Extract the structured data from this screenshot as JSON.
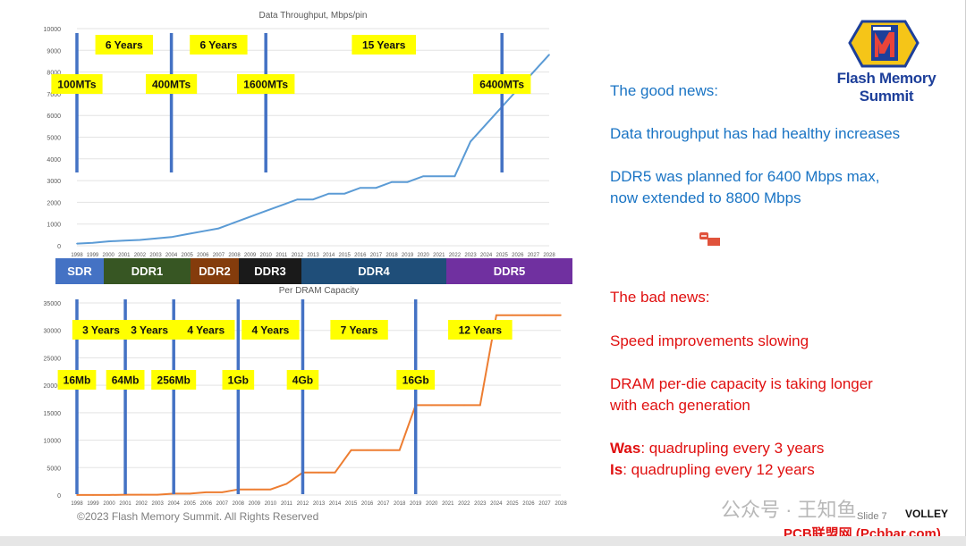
{
  "chart_data": [
    {
      "type": "line",
      "title": "Data Throughput, Mbps/pin",
      "x": [
        1998,
        1999,
        2000,
        2001,
        2002,
        2003,
        2004,
        2005,
        2006,
        2007,
        2008,
        2009,
        2010,
        2011,
        2012,
        2013,
        2014,
        2015,
        2016,
        2017,
        2018,
        2019,
        2020,
        2021,
        2022,
        2023,
        2024,
        2025,
        2026,
        2027,
        2028
      ],
      "series": [
        {
          "values": [
            100,
            133,
            200,
            233,
            267,
            333,
            400,
            533,
            667,
            800,
            1066,
            1333,
            1600,
            1866,
            2133,
            2133,
            2400,
            2400,
            2666,
            2666,
            2933,
            2933,
            3200,
            3200,
            3200,
            4800,
            5600,
            6400,
            7200,
            8000,
            8800
          ],
          "color": "#5b9bd5"
        }
      ],
      "ylim": [
        0,
        10000
      ],
      "yticks": [
        0,
        1000,
        2000,
        3000,
        4000,
        5000,
        6000,
        7000,
        8000,
        9000,
        10000
      ],
      "markers": [
        {
          "year": 1998,
          "label": "100MTs"
        },
        {
          "year": 2004,
          "label": "400MTs"
        },
        {
          "year": 2010,
          "label": "1600MTs"
        },
        {
          "year": 2025,
          "label": "6400MTs"
        }
      ],
      "span_labels": [
        {
          "between": [
            1998,
            2004
          ],
          "label": "6 Years"
        },
        {
          "between": [
            2004,
            2010
          ],
          "label": "6 Years"
        },
        {
          "between": [
            2010,
            2025
          ],
          "label": "15 Years"
        }
      ]
    },
    {
      "type": "line",
      "title": "Per DRAM Capacity",
      "x": [
        1998,
        1999,
        2000,
        2001,
        2002,
        2003,
        2004,
        2005,
        2006,
        2007,
        2008,
        2009,
        2010,
        2011,
        2012,
        2013,
        2014,
        2015,
        2016,
        2017,
        2018,
        2019,
        2020,
        2021,
        2022,
        2023,
        2024,
        2025,
        2026,
        2027,
        2028
      ],
      "series": [
        {
          "values": [
            16,
            16,
            16,
            64,
            64,
            64,
            256,
            256,
            512,
            512,
            1024,
            1024,
            1024,
            2048,
            4096,
            4096,
            4096,
            8192,
            8192,
            8192,
            8192,
            16384,
            16384,
            16384,
            16384,
            16384,
            32768,
            32768,
            32768,
            32768,
            32768
          ],
          "color": "#ed7d31"
        }
      ],
      "ylim": [
        0,
        35000
      ],
      "yticks": [
        0,
        5000,
        10000,
        15000,
        20000,
        25000,
        30000,
        35000
      ],
      "markers": [
        {
          "year": 1998,
          "label": "16Mb"
        },
        {
          "year": 2001,
          "label": "64Mb"
        },
        {
          "year": 2004,
          "label": "256Mb"
        },
        {
          "year": 2008,
          "label": "1Gb"
        },
        {
          "year": 2012,
          "label": "4Gb"
        },
        {
          "year": 2019,
          "label": "16Gb"
        }
      ],
      "span_labels": [
        {
          "between": [
            1998,
            2001
          ],
          "label": "3 Years"
        },
        {
          "between": [
            2001,
            2004
          ],
          "label": "3 Years"
        },
        {
          "between": [
            2004,
            2008
          ],
          "label": "4 Years"
        },
        {
          "between": [
            2008,
            2012
          ],
          "label": "4 Years"
        },
        {
          "between": [
            2012,
            2019
          ],
          "label": "7 Years"
        },
        {
          "between": [
            2021.5,
            2024.5
          ],
          "label": "12 Years"
        }
      ]
    }
  ],
  "generations": [
    {
      "label": "SDR",
      "color": "#4472c4"
    },
    {
      "label": "DDR1",
      "color": "#375623"
    },
    {
      "label": "DDR2",
      "color": "#843c0c"
    },
    {
      "label": "DDR3",
      "color": "#1a1a1a"
    },
    {
      "label": "DDR4",
      "color": "#1f4e79"
    },
    {
      "label": "DDR5",
      "color": "#7030a0"
    }
  ],
  "good_news": {
    "heading": "The good news:",
    "point1": "Data throughput has had healthy increases",
    "point2": "DDR5 was planned for 6400 Mbps max,\nnow extended to 8800 Mbps"
  },
  "bad_news": {
    "heading": "The bad news:",
    "point1": "Speed improvements slowing",
    "point2": "DRAM per-die capacity is taking longer\nwith each generation",
    "was_label": "Was",
    "was_text": ": quadrupling every 3 years",
    "is_label": "Is",
    "is_text": ": quadrupling every 12 years"
  },
  "logo": {
    "text": "Flash Memory Summit"
  },
  "footer": "©2023 Flash Memory Summit. All Rights Reserved",
  "slide_number": "Slide 7",
  "watermark": {
    "text1": "公众号 · 王知鱼",
    "text2": "PCB联盟网 (Pcbbar.com)",
    "volley": "VOLLEY"
  },
  "colors": {
    "accent_blue": "#1a74c4",
    "accent_red": "#e01010",
    "label_bg": "#ffff00",
    "marker_line": "#4472c4"
  }
}
